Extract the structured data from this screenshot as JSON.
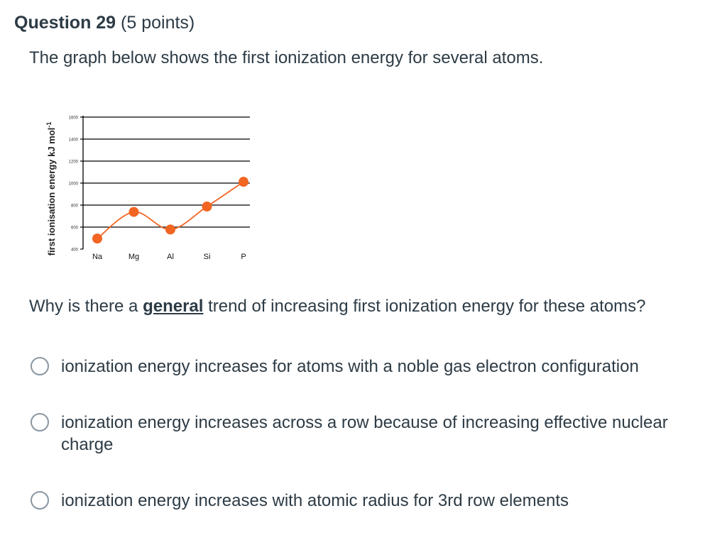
{
  "question": {
    "title": "Question 29",
    "points": "(5 points)",
    "intro": "The graph below shows the first ionization energy for several atoms.",
    "prompt_before": "Why is there a ",
    "prompt_emphasis": "general",
    "prompt_after": " trend of increasing first ionization energy for these atoms?"
  },
  "answers": [
    {
      "label": "ionization energy increases for atoms with a noble gas electron configuration"
    },
    {
      "label": "ionization energy increases across a row because of increasing effective nuclear charge"
    },
    {
      "label": "ionization energy increases with atomic radius for 3rd row elements"
    }
  ],
  "colors": {
    "series": "#f26522",
    "text": "#2d3b45",
    "radio_border": "#8a96a0"
  },
  "chart_data": {
    "type": "line",
    "categories": [
      "Na",
      "Mg",
      "Al",
      "Si",
      "P"
    ],
    "values": [
      496,
      738,
      578,
      787,
      1012
    ],
    "ylabel": "first ionisation energy kJ mol",
    "ylabel_sup": "-1",
    "ylim": [
      400,
      1600
    ],
    "yticks": [
      "1600",
      "1400",
      "1200",
      "1000",
      "800",
      "600",
      "400"
    ],
    "grid": true
  }
}
